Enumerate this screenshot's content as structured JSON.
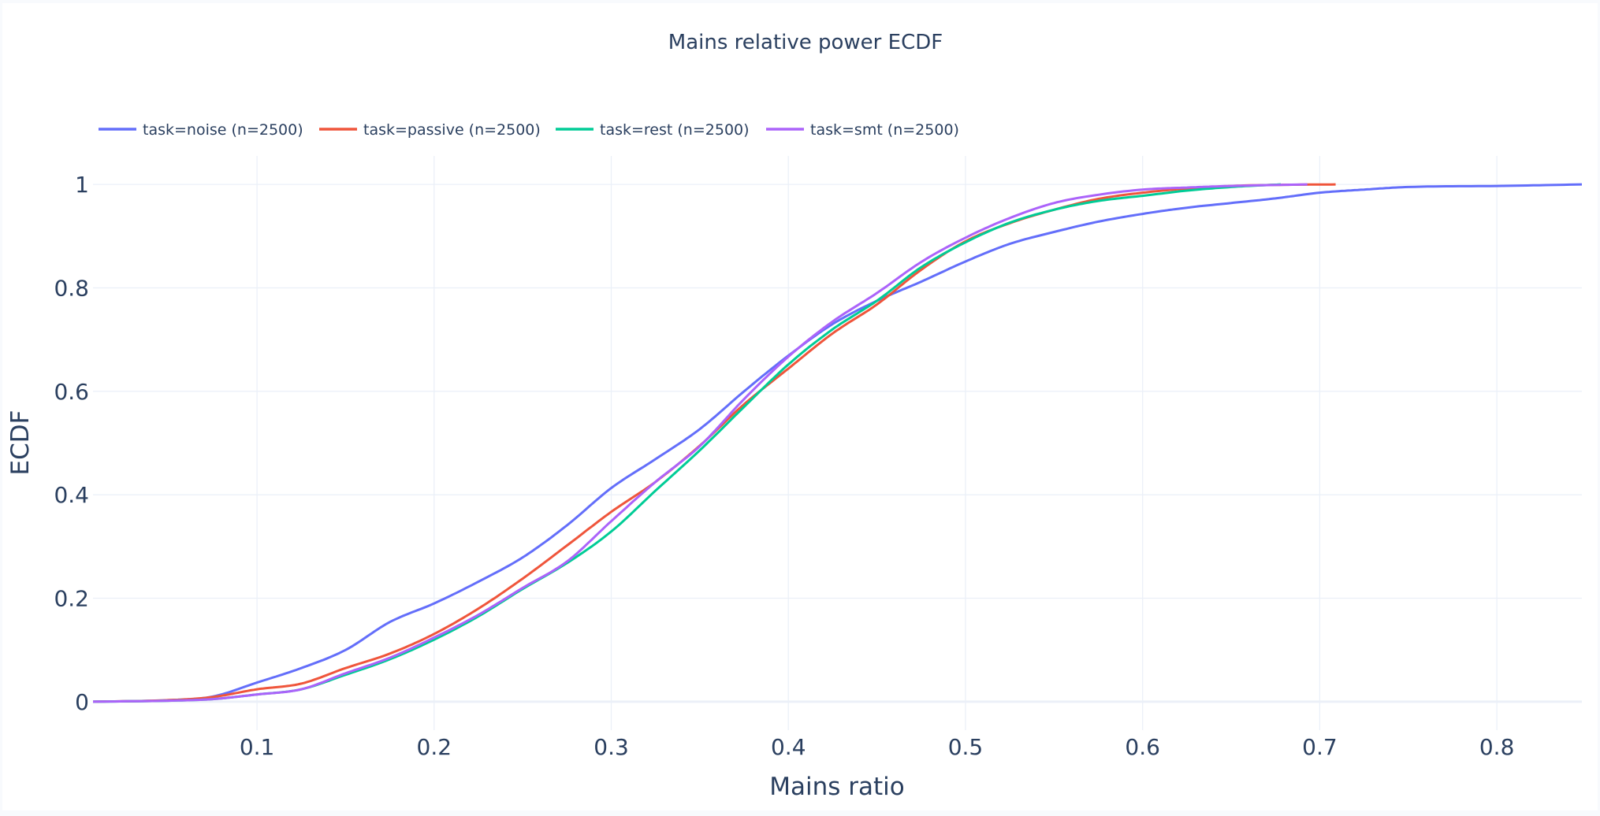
{
  "chart_data": {
    "type": "line",
    "title": "Mains relative power ECDF",
    "xlabel": "Mains ratio",
    "ylabel": "ECDF",
    "xlim": [
      0.0074,
      0.848
    ],
    "ylim": [
      -0.055,
      1.055
    ],
    "xticks": [
      0.1,
      0.2,
      0.3,
      0.4,
      0.5,
      0.6,
      0.7,
      0.8
    ],
    "xtick_labels": [
      "0.1",
      "0.2",
      "0.3",
      "0.4",
      "0.5",
      "0.6",
      "0.7",
      "0.8"
    ],
    "yticks": [
      0,
      0.2,
      0.4,
      0.6,
      0.8,
      1
    ],
    "ytick_labels": [
      "0",
      "0.2",
      "0.4",
      "0.6",
      "0.8",
      "1"
    ],
    "grid": true,
    "legend_position": "top-left, horizontal",
    "series": [
      {
        "name": "task=noise (n=2500)",
        "color": "#636efa",
        "x": [
          0.0074,
          0.05,
          0.075,
          0.1,
          0.125,
          0.15,
          0.175,
          0.2,
          0.225,
          0.25,
          0.275,
          0.3,
          0.325,
          0.35,
          0.375,
          0.4,
          0.425,
          0.45,
          0.475,
          0.5,
          0.525,
          0.55,
          0.575,
          0.6,
          0.625,
          0.65,
          0.675,
          0.7,
          0.725,
          0.75,
          0.8,
          0.848
        ],
        "y": [
          0,
          0.003,
          0.01,
          0.037,
          0.065,
          0.1,
          0.154,
          0.19,
          0.232,
          0.279,
          0.341,
          0.413,
          0.469,
          0.527,
          0.6,
          0.669,
          0.73,
          0.775,
          0.812,
          0.851,
          0.885,
          0.908,
          0.928,
          0.943,
          0.955,
          0.964,
          0.973,
          0.984,
          0.99,
          0.995,
          0.997,
          1.0
        ]
      },
      {
        "name": "task=passive (n=2500)",
        "color": "#EF553B",
        "x": [
          0.0074,
          0.05,
          0.075,
          0.1,
          0.125,
          0.15,
          0.175,
          0.2,
          0.225,
          0.25,
          0.275,
          0.3,
          0.325,
          0.35,
          0.375,
          0.4,
          0.425,
          0.45,
          0.475,
          0.5,
          0.525,
          0.55,
          0.575,
          0.6,
          0.625,
          0.65,
          0.675,
          0.709
        ],
        "y": [
          0,
          0.003,
          0.009,
          0.024,
          0.035,
          0.065,
          0.093,
          0.131,
          0.18,
          0.238,
          0.302,
          0.367,
          0.425,
          0.495,
          0.575,
          0.644,
          0.712,
          0.768,
          0.835,
          0.89,
          0.925,
          0.951,
          0.972,
          0.984,
          0.992,
          0.997,
          0.999,
          1.0
        ]
      },
      {
        "name": "task=rest (n=2500)",
        "color": "#00cc96",
        "x": [
          0.0074,
          0.05,
          0.075,
          0.1,
          0.125,
          0.15,
          0.175,
          0.2,
          0.225,
          0.25,
          0.275,
          0.3,
          0.325,
          0.35,
          0.375,
          0.4,
          0.425,
          0.45,
          0.475,
          0.5,
          0.525,
          0.55,
          0.575,
          0.6,
          0.625,
          0.65,
          0.678
        ],
        "y": [
          0,
          0.002,
          0.005,
          0.014,
          0.024,
          0.052,
          0.082,
          0.12,
          0.165,
          0.218,
          0.268,
          0.329,
          0.408,
          0.486,
          0.57,
          0.652,
          0.72,
          0.775,
          0.84,
          0.888,
          0.926,
          0.951,
          0.968,
          0.978,
          0.988,
          0.995,
          1.0
        ]
      },
      {
        "name": "task=smt (n=2500)",
        "color": "#ab63fa",
        "x": [
          0.0074,
          0.05,
          0.075,
          0.1,
          0.125,
          0.15,
          0.175,
          0.2,
          0.225,
          0.25,
          0.275,
          0.3,
          0.325,
          0.35,
          0.375,
          0.4,
          0.425,
          0.45,
          0.475,
          0.5,
          0.525,
          0.55,
          0.575,
          0.6,
          0.625,
          0.65,
          0.693
        ],
        "y": [
          0,
          0.002,
          0.005,
          0.014,
          0.024,
          0.055,
          0.085,
          0.124,
          0.168,
          0.22,
          0.271,
          0.349,
          0.425,
          0.494,
          0.585,
          0.667,
          0.735,
          0.79,
          0.85,
          0.897,
          0.935,
          0.964,
          0.98,
          0.99,
          0.994,
          0.997,
          1.0
        ]
      }
    ]
  },
  "colors": {
    "text": "#2a3f5f",
    "grid": "#ebf0f8",
    "background": "#ffffff"
  }
}
